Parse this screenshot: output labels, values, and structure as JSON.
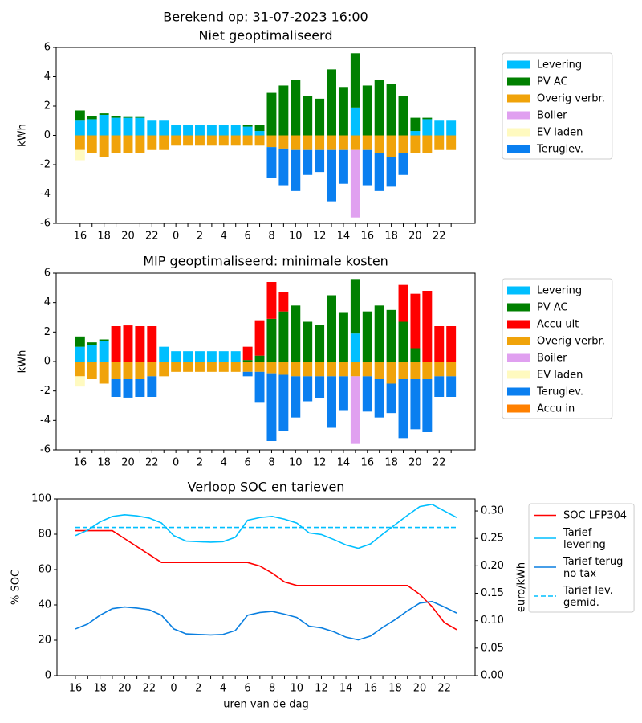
{
  "title": "Berekend op: 31-07-2023 16:00",
  "chart_data": [
    {
      "type": "bar",
      "stacked": true,
      "title": "Niet geoptimaliseerd",
      "y_label": "kWh",
      "categories": [
        "16",
        null,
        "18",
        null,
        "20",
        null,
        "22",
        null,
        "0",
        null,
        "2",
        null,
        "4",
        null,
        "6",
        null,
        "8",
        null,
        "10",
        null,
        "12",
        null,
        "14",
        null,
        "16",
        null,
        "18",
        null,
        "20",
        null,
        "22",
        null
      ],
      "ylim": [
        -6,
        6
      ],
      "yticks": [
        -6,
        -4,
        -2,
        0,
        2,
        4,
        6
      ],
      "legend": "outside-right",
      "series": [
        {
          "name": "Levering",
          "color": "#00bfff",
          "values": [
            1.0,
            1.1,
            1.4,
            1.2,
            1.2,
            1.2,
            1.0,
            1.0,
            0.7,
            0.7,
            0.7,
            0.7,
            0.7,
            0.7,
            0.6,
            0.3,
            0,
            0,
            0,
            0,
            0,
            0,
            0,
            1.9,
            0,
            0,
            0,
            0,
            0.3,
            1.1,
            1.0,
            1.0
          ]
        },
        {
          "name": "PV AC",
          "color": "#008000",
          "values": [
            0.7,
            0.2,
            0.1,
            0.1,
            0.05,
            0.05,
            0,
            0,
            0,
            0,
            0,
            0,
            0,
            0,
            0.1,
            0.4,
            2.9,
            3.4,
            3.8,
            2.7,
            2.5,
            4.5,
            3.3,
            3.7,
            3.4,
            3.8,
            3.5,
            2.7,
            0.9,
            0.1,
            0,
            0
          ]
        },
        {
          "name": "Overig verbr.",
          "color": "#f0a30a",
          "values": [
            -1.0,
            -1.2,
            -1.5,
            -1.2,
            -1.2,
            -1.2,
            -1.0,
            -1.0,
            -0.7,
            -0.7,
            -0.7,
            -0.7,
            -0.7,
            -0.7,
            -0.7,
            -0.7,
            -0.8,
            -0.9,
            -1.0,
            -1.0,
            -1.0,
            -1.0,
            -1.0,
            -1.0,
            -1.0,
            -1.2,
            -1.5,
            -1.2,
            -1.2,
            -1.2,
            -1.0,
            -1.0
          ]
        },
        {
          "name": "Boiler",
          "color": "#e0a0f0",
          "values": [
            0,
            0,
            0,
            0,
            0,
            0,
            0,
            0,
            0,
            0,
            0,
            0,
            0,
            0,
            0,
            0,
            0,
            0,
            0,
            0,
            0,
            0,
            0,
            -4.6,
            0,
            0,
            0,
            0,
            0,
            0,
            0,
            0
          ]
        },
        {
          "name": "EV laden",
          "color": "#fffac0",
          "values": [
            -0.7,
            0,
            0,
            0,
            0,
            0,
            0,
            0,
            0,
            0,
            0,
            0,
            0,
            0,
            0,
            0,
            0,
            0,
            0,
            0,
            0,
            0,
            0,
            0,
            0,
            0,
            0,
            0,
            0,
            0,
            0,
            0
          ]
        },
        {
          "name": "Teruglev.",
          "color": "#0a7ff0",
          "values": [
            0,
            0,
            0,
            0,
            0,
            0,
            0,
            0,
            0,
            0,
            0,
            0,
            0,
            0,
            0,
            0,
            -2.1,
            -2.5,
            -2.8,
            -1.7,
            -1.5,
            -3.5,
            -2.3,
            0,
            -2.4,
            -2.6,
            -2.0,
            -1.5,
            0,
            0,
            0,
            0
          ]
        }
      ]
    },
    {
      "type": "bar",
      "stacked": true,
      "title": "MIP geoptimaliseerd: minimale kosten",
      "y_label": "kWh",
      "categories": [
        "16",
        null,
        "18",
        null,
        "20",
        null,
        "22",
        null,
        "0",
        null,
        "2",
        null,
        "4",
        null,
        "6",
        null,
        "8",
        null,
        "10",
        null,
        "12",
        null,
        "14",
        null,
        "16",
        null,
        "18",
        null,
        "20",
        null,
        "22",
        null
      ],
      "ylim": [
        -6,
        6
      ],
      "yticks": [
        -6,
        -4,
        -2,
        0,
        2,
        4,
        6
      ],
      "legend": "outside-right",
      "series": [
        {
          "name": "Levering",
          "color": "#00bfff",
          "values": [
            1.0,
            1.1,
            1.4,
            0,
            0,
            0,
            0,
            1.0,
            0.7,
            0.7,
            0.7,
            0.7,
            0.7,
            0.7,
            0,
            0,
            0,
            0,
            0,
            0,
            0,
            0,
            0,
            1.9,
            0,
            0,
            0,
            0,
            0,
            0,
            0,
            0
          ]
        },
        {
          "name": "PV AC",
          "color": "#008000",
          "values": [
            0.7,
            0.2,
            0.1,
            0,
            0,
            0,
            0,
            0,
            0,
            0,
            0,
            0,
            0,
            0,
            0.1,
            0.4,
            2.9,
            3.4,
            3.8,
            2.7,
            2.5,
            4.5,
            3.3,
            3.7,
            3.4,
            3.8,
            3.5,
            2.7,
            0.9,
            0,
            0,
            0
          ]
        },
        {
          "name": "Accu uit",
          "color": "#ff0000",
          "values": [
            0,
            0,
            0,
            2.4,
            2.45,
            2.4,
            2.4,
            0,
            0,
            0,
            0,
            0,
            0,
            0,
            0.9,
            2.4,
            2.5,
            1.3,
            0,
            0,
            0,
            0,
            0,
            0,
            0,
            0,
            0,
            2.5,
            3.7,
            4.8,
            2.4,
            2.4
          ]
        },
        {
          "name": "Overig verbr.",
          "color": "#f0a30a",
          "values": [
            -1.0,
            -1.2,
            -1.5,
            -1.2,
            -1.2,
            -1.2,
            -1.0,
            -1.0,
            -0.7,
            -0.7,
            -0.7,
            -0.7,
            -0.7,
            -0.7,
            -0.7,
            -0.7,
            -0.8,
            -0.9,
            -1.0,
            -1.0,
            -1.0,
            -1.0,
            -1.0,
            -1.0,
            -1.0,
            -1.2,
            -1.5,
            -1.2,
            -1.2,
            -1.2,
            -1.0,
            -1.0
          ]
        },
        {
          "name": "Boiler",
          "color": "#e0a0f0",
          "values": [
            0,
            0,
            0,
            0,
            0,
            0,
            0,
            0,
            0,
            0,
            0,
            0,
            0,
            0,
            0,
            0,
            0,
            0,
            0,
            0,
            0,
            0,
            0,
            -4.6,
            0,
            0,
            0,
            0,
            0,
            0,
            0,
            0
          ]
        },
        {
          "name": "EV laden",
          "color": "#fffac0",
          "values": [
            -0.7,
            0,
            0,
            0,
            0,
            0,
            0,
            0,
            0,
            0,
            0,
            0,
            0,
            0,
            0,
            0,
            0,
            0,
            0,
            0,
            0,
            0,
            0,
            0,
            0,
            0,
            0,
            0,
            0,
            0,
            0,
            0
          ]
        },
        {
          "name": "Teruglev.",
          "color": "#0a7ff0",
          "values": [
            0,
            0,
            0,
            -1.2,
            -1.25,
            -1.2,
            -1.4,
            0,
            0,
            0,
            0,
            0,
            0,
            0,
            -0.3,
            -2.1,
            -4.6,
            -3.8,
            -2.8,
            -1.7,
            -1.5,
            -3.5,
            -2.3,
            0,
            -2.4,
            -2.6,
            -2.0,
            -4.0,
            -3.4,
            -3.6,
            -1.4,
            -1.4
          ]
        },
        {
          "name": "Accu in",
          "color": "#ff8000",
          "values": [
            0,
            0,
            0,
            0,
            0,
            0,
            0,
            0,
            0,
            0,
            0,
            0,
            0,
            0,
            0,
            0,
            0,
            0,
            0,
            0,
            0,
            0,
            0,
            0,
            0,
            0,
            0,
            0,
            0,
            0,
            0,
            0
          ]
        }
      ]
    },
    {
      "type": "line",
      "title": "Verloop SOC en tarieven",
      "x_label": "uren van de dag",
      "y_label": "% SOC",
      "y2_label": "euro/kWh",
      "categories": [
        "16",
        null,
        "18",
        null,
        "20",
        null,
        "22",
        null,
        "0",
        null,
        "2",
        null,
        "4",
        null,
        "6",
        null,
        "8",
        null,
        "10",
        null,
        "12",
        null,
        "14",
        null,
        "16",
        null,
        "18",
        null,
        "20",
        null,
        "22",
        null
      ],
      "ylim": [
        0,
        100
      ],
      "yticks": [
        0,
        20,
        40,
        60,
        80,
        100
      ],
      "y2lim": [
        0,
        0.322
      ],
      "y2ticks": [
        {
          "value": 0,
          "label": "0.00"
        },
        {
          "value": 0.05,
          "label": "0.05"
        },
        {
          "value": 0.1,
          "label": "0.10"
        },
        {
          "value": 0.15,
          "label": "0.15"
        },
        {
          "value": 0.2,
          "label": "0.20"
        },
        {
          "value": 0.25,
          "label": "0.25"
        },
        {
          "value": 0.3,
          "label": "0.30"
        }
      ],
      "legend": "outside-right",
      "series": [
        {
          "name": "SOC LFP304",
          "color": "#ff0000",
          "linestyle": "solid",
          "values": [
            82,
            82,
            82,
            82,
            77.5,
            73,
            68.5,
            64,
            64,
            64,
            64,
            64,
            64,
            64,
            64,
            62,
            58,
            53,
            51,
            51,
            51,
            51,
            51,
            51,
            51,
            51,
            51,
            51,
            46,
            39,
            30,
            26
          ]
        },
        {
          "name": "Tarief\nlevering",
          "color": "#00bfff",
          "linestyle": "solid",
          "axis": "y2",
          "values": [
            0.255,
            0.265,
            0.28,
            0.29,
            0.293,
            0.291,
            0.287,
            0.278,
            0.255,
            0.245,
            0.244,
            0.243,
            0.244,
            0.252,
            0.283,
            0.288,
            0.29,
            0.285,
            0.278,
            0.26,
            0.257,
            0.248,
            0.238,
            0.232,
            0.24,
            0.258,
            0.275,
            0.292,
            0.308,
            0.312,
            0.3,
            0.288
          ]
        },
        {
          "name": "Tarief terug\nno tax",
          "color": "#0a7fe0",
          "linestyle": "solid",
          "axis": "y2",
          "values": [
            0.085,
            0.094,
            0.11,
            0.122,
            0.125,
            0.123,
            0.12,
            0.11,
            0.085,
            0.076,
            0.075,
            0.074,
            0.075,
            0.082,
            0.11,
            0.115,
            0.117,
            0.112,
            0.106,
            0.09,
            0.087,
            0.08,
            0.07,
            0.065,
            0.072,
            0.088,
            0.102,
            0.118,
            0.132,
            0.135,
            0.125,
            0.114
          ]
        },
        {
          "name": "Tarief lev.\ngemid.",
          "color": "#00bfff",
          "linestyle": "dashed",
          "axis": "y2",
          "values": [
            0.27,
            0.27,
            0.27,
            0.27,
            0.27,
            0.27,
            0.27,
            0.27,
            0.27,
            0.27,
            0.27,
            0.27,
            0.27,
            0.27,
            0.27,
            0.27,
            0.27,
            0.27,
            0.27,
            0.27,
            0.27,
            0.27,
            0.27,
            0.27,
            0.27,
            0.27,
            0.27,
            0.27,
            0.27,
            0.27,
            0.27,
            0.27
          ]
        }
      ]
    }
  ]
}
